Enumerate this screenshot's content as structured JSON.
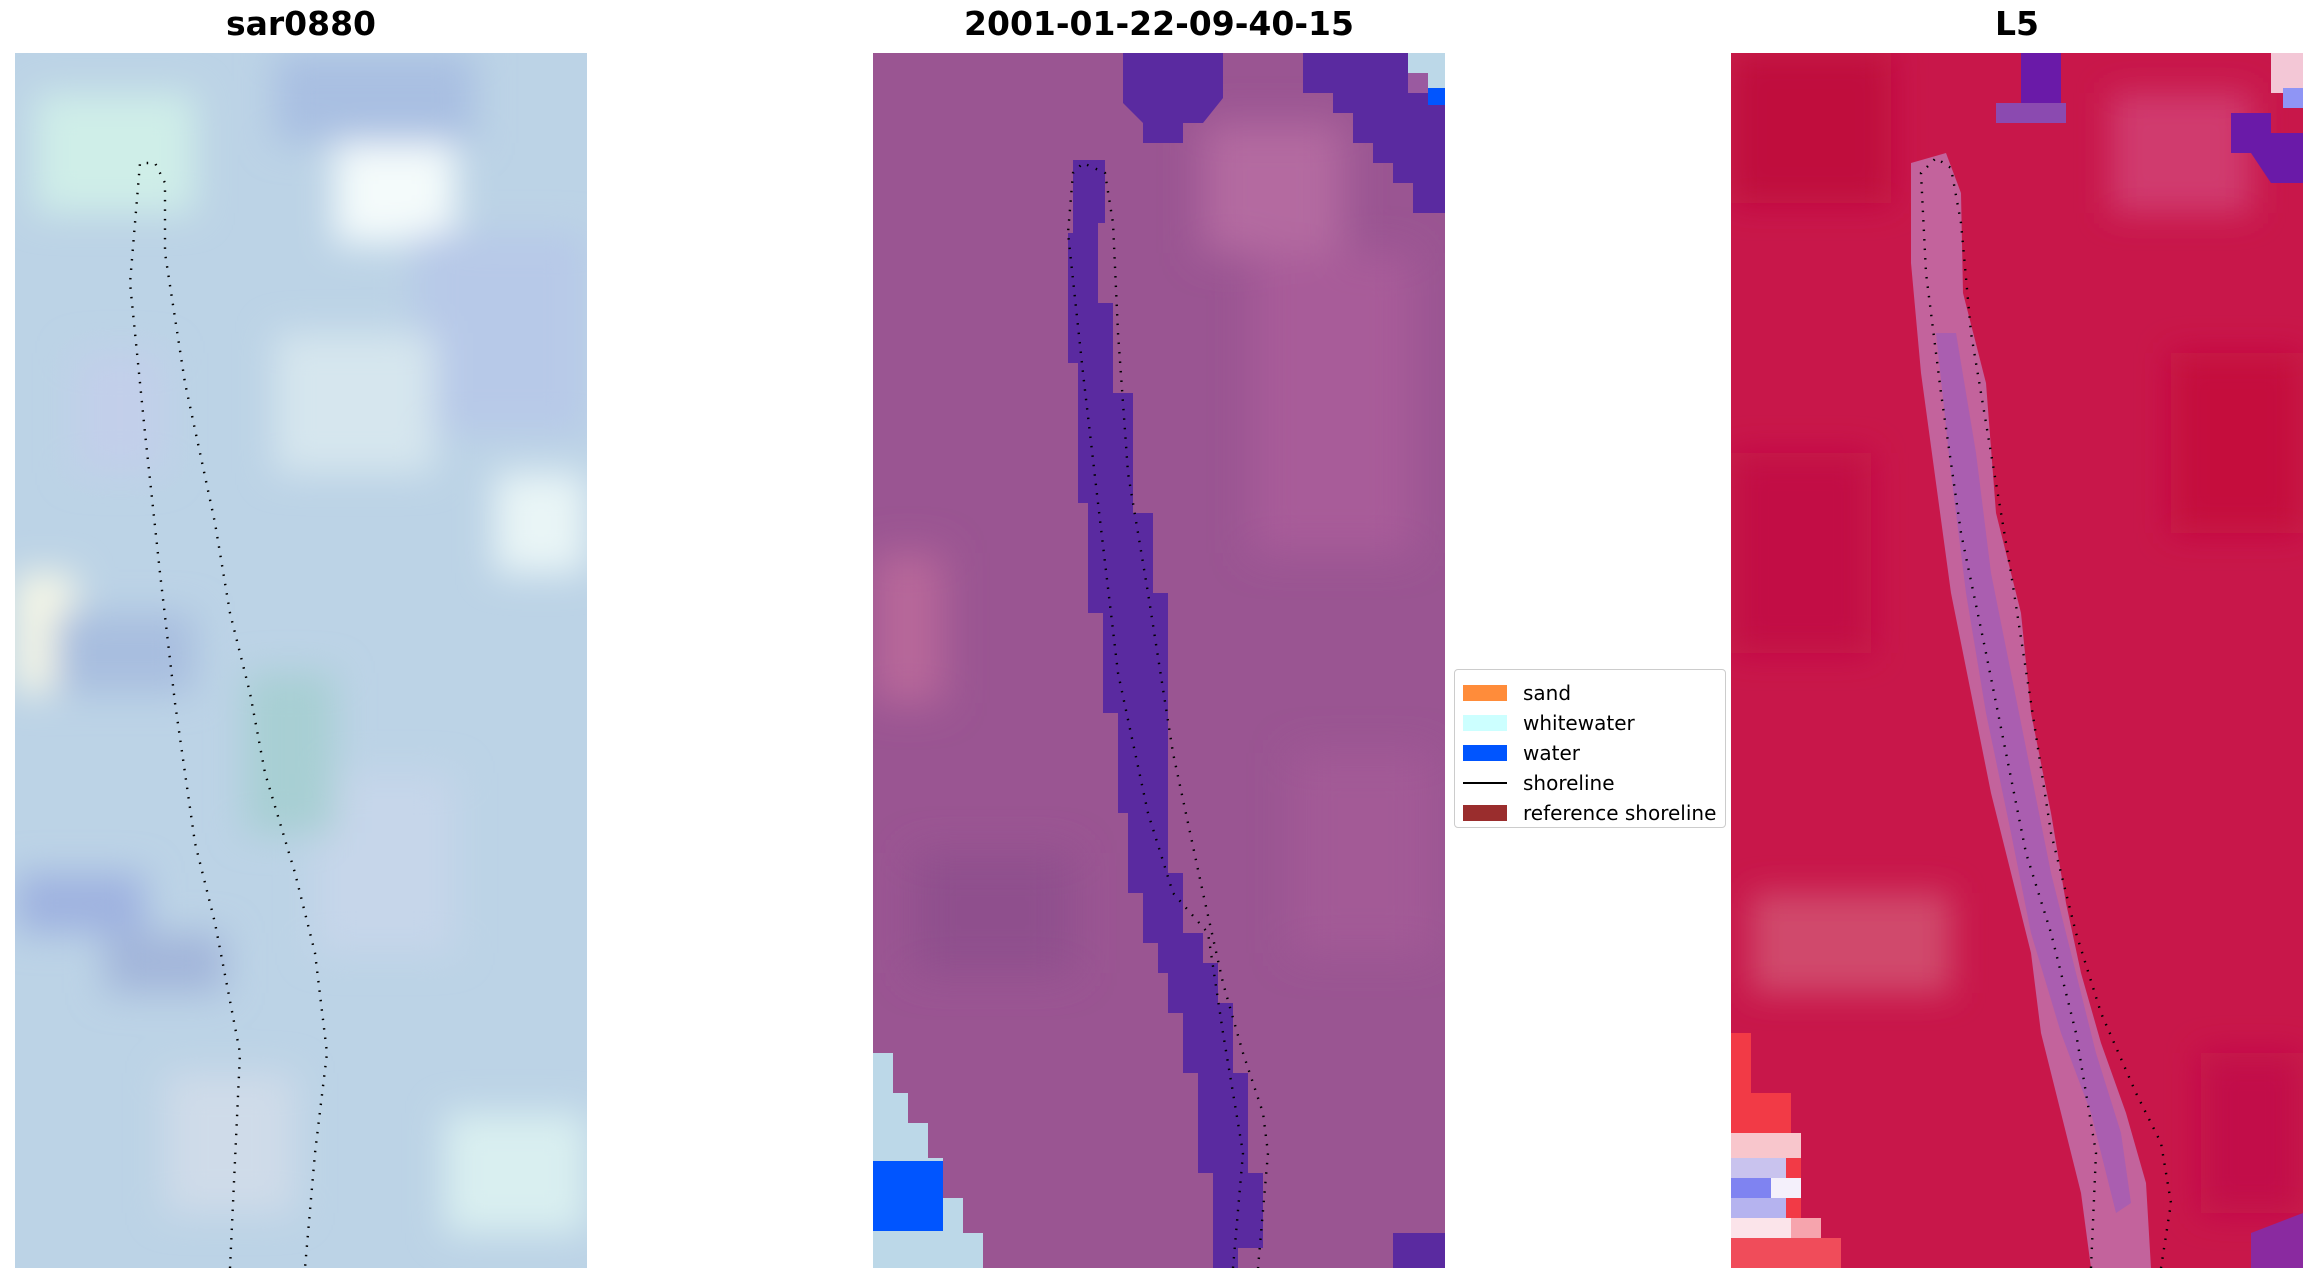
{
  "panels": [
    {
      "title": "sar0880"
    },
    {
      "title": "2001-01-22-09-40-15"
    },
    {
      "title": "L5"
    }
  ],
  "legend": {
    "items": [
      {
        "label": "sand",
        "color": "#ff8c3a",
        "kind": "patch"
      },
      {
        "label": "whitewater",
        "color": "#ccffff",
        "kind": "patch"
      },
      {
        "label": "water",
        "color": "#0055ff",
        "kind": "patch"
      },
      {
        "label": "shoreline",
        "color": "#000000",
        "kind": "line"
      },
      {
        "label": "reference shoreline",
        "color": "#9a2d2d",
        "kind": "patch"
      }
    ]
  }
}
